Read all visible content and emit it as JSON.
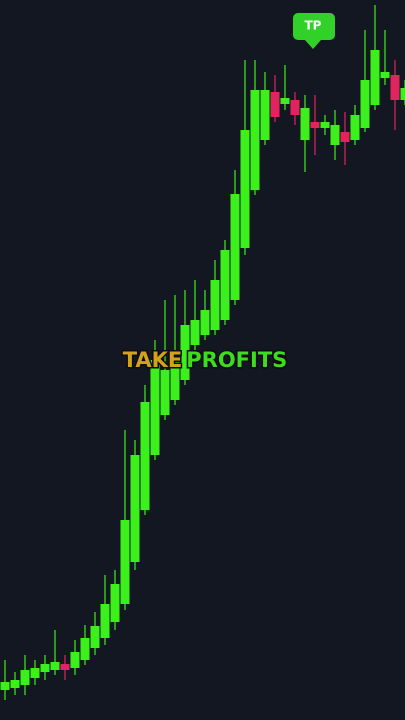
{
  "chart_data": {
    "type": "candlestick",
    "ylim": [
      0,
      720
    ],
    "up_color": "#3cf01c",
    "down_color": "#e0245e",
    "open": [
      30,
      32,
      35,
      42,
      48,
      50,
      56,
      52,
      60,
      72,
      82,
      98,
      116,
      158,
      210,
      265,
      305,
      320,
      340,
      375,
      385,
      390,
      400,
      420,
      472,
      530,
      580,
      628,
      616,
      620,
      580,
      598,
      592,
      575,
      588,
      580,
      592,
      615,
      642,
      645,
      620
    ],
    "close": [
      38,
      40,
      50,
      52,
      56,
      58,
      50,
      68,
      82,
      94,
      116,
      136,
      200,
      265,
      318,
      360,
      350,
      368,
      395,
      400,
      410,
      440,
      470,
      526,
      590,
      630,
      630,
      603,
      622,
      605,
      612,
      592,
      598,
      595,
      578,
      605,
      640,
      670,
      648,
      620,
      632
    ],
    "high": [
      60,
      48,
      65,
      60,
      65,
      90,
      65,
      80,
      95,
      108,
      145,
      150,
      290,
      280,
      335,
      380,
      420,
      425,
      430,
      440,
      430,
      460,
      480,
      550,
      660,
      660,
      648,
      645,
      655,
      628,
      625,
      625,
      605,
      610,
      608,
      615,
      690,
      715,
      690,
      660,
      640
    ],
    "low": [
      20,
      25,
      25,
      35,
      40,
      45,
      40,
      45,
      55,
      65,
      75,
      90,
      110,
      150,
      205,
      260,
      300,
      315,
      335,
      370,
      380,
      385,
      395,
      415,
      465,
      525,
      575,
      598,
      610,
      595,
      548,
      565,
      585,
      560,
      555,
      575,
      588,
      610,
      635,
      590,
      615
    ],
    "annotations": {
      "headline": [
        "TAKE",
        "PROFITS"
      ],
      "headline_colors": [
        "#d4a21a",
        "#3ddc1f"
      ],
      "marker": "TP",
      "marker_color": "#32d12a"
    }
  }
}
